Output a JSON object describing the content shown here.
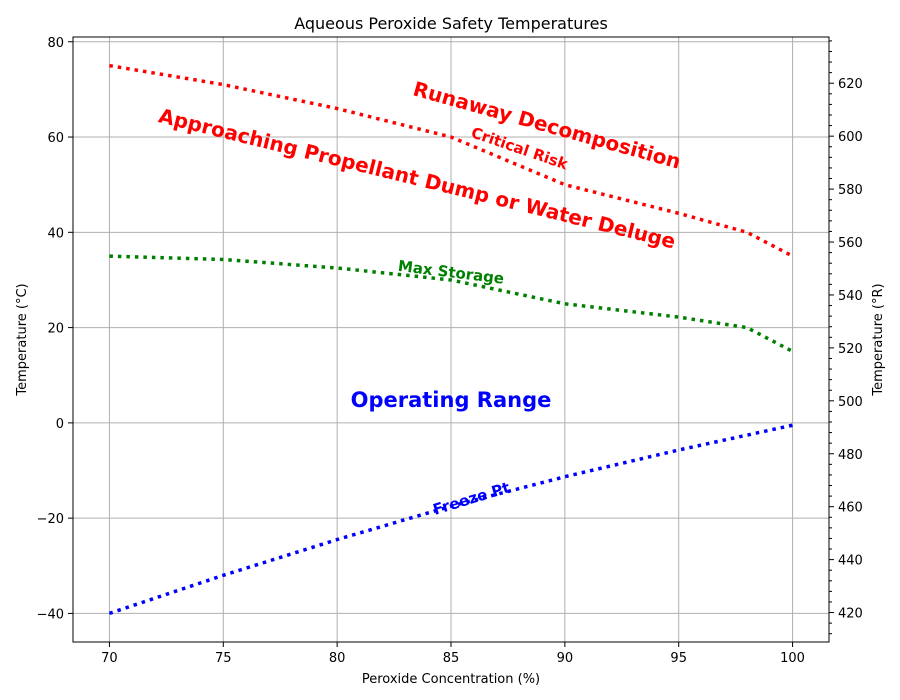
{
  "chart_data": {
    "type": "line",
    "title": "Aqueous Peroxide Safety Temperatures",
    "xlabel": "Peroxide Concentration (%)",
    "ylabel": "Temperature (°C)",
    "ylabel_right": "Temperature (°R)",
    "xlim": [
      68.4,
      101.6
    ],
    "ylim": [
      -46,
      81
    ],
    "xticks": [
      "70",
      "75",
      "80",
      "85",
      "90",
      "95",
      "100"
    ],
    "xtick_values": [
      70,
      75,
      80,
      85,
      90,
      95,
      100
    ],
    "yticks": [
      "−40",
      "−20",
      "0",
      "20",
      "40",
      "60",
      "80"
    ],
    "ytick_values": [
      -40,
      -20,
      0,
      20,
      40,
      60,
      80
    ],
    "yticks_right": [
      "420",
      "440",
      "460",
      "480",
      "500",
      "520",
      "540",
      "560",
      "580",
      "600",
      "620"
    ],
    "ytick_right_values": [
      420,
      440,
      460,
      480,
      500,
      520,
      540,
      560,
      580,
      600,
      620
    ],
    "grid": true,
    "series": [
      {
        "name": "Critical Risk",
        "color": "#ff0000",
        "x": [
          70,
          75,
          80,
          85,
          90,
          95,
          98,
          100
        ],
        "y": [
          75,
          71,
          66,
          60,
          50,
          44,
          40,
          35
        ]
      },
      {
        "name": "Max Storage",
        "color": "#008000",
        "x": [
          70,
          75,
          80,
          85,
          90,
          95,
          98,
          100
        ],
        "y": [
          35,
          34.3,
          32.5,
          30,
          25,
          22.2,
          20,
          15
        ]
      },
      {
        "name": "Freeze Pt",
        "color": "#0000ff",
        "x": [
          70,
          75,
          80,
          85,
          90,
          95,
          100
        ],
        "y": [
          -40,
          -32,
          -24.5,
          -17.5,
          -11.3,
          -5.7,
          -0.5
        ]
      }
    ],
    "annotations": [
      {
        "text": "Runaway Decomposition",
        "x": 89.2,
        "y": 62.2,
        "angle": 15.5,
        "color": "#ff0000",
        "size": 20
      },
      {
        "text": "Approaching Propellant Dump or Water Deluge",
        "x": 83.5,
        "y": 51,
        "angle": 13.8,
        "color": "#ff0000",
        "size": 20
      },
      {
        "text": "Critical Risk",
        "x": 88,
        "y": 57.5,
        "angle": 19,
        "color": "#ff0000",
        "size": 15
      },
      {
        "text": "Max Storage",
        "x": 85,
        "y": 31.5,
        "angle": 7,
        "color": "#008000",
        "size": 15
      },
      {
        "text": "Operating Range",
        "x": 85,
        "y": 4.6,
        "angle": 0,
        "color": "#0000ff",
        "size": 21
      },
      {
        "text": "Freeze Pt",
        "x": 85.9,
        "y": -16,
        "angle": -17,
        "color": "#0000ff",
        "size": 15
      }
    ]
  }
}
